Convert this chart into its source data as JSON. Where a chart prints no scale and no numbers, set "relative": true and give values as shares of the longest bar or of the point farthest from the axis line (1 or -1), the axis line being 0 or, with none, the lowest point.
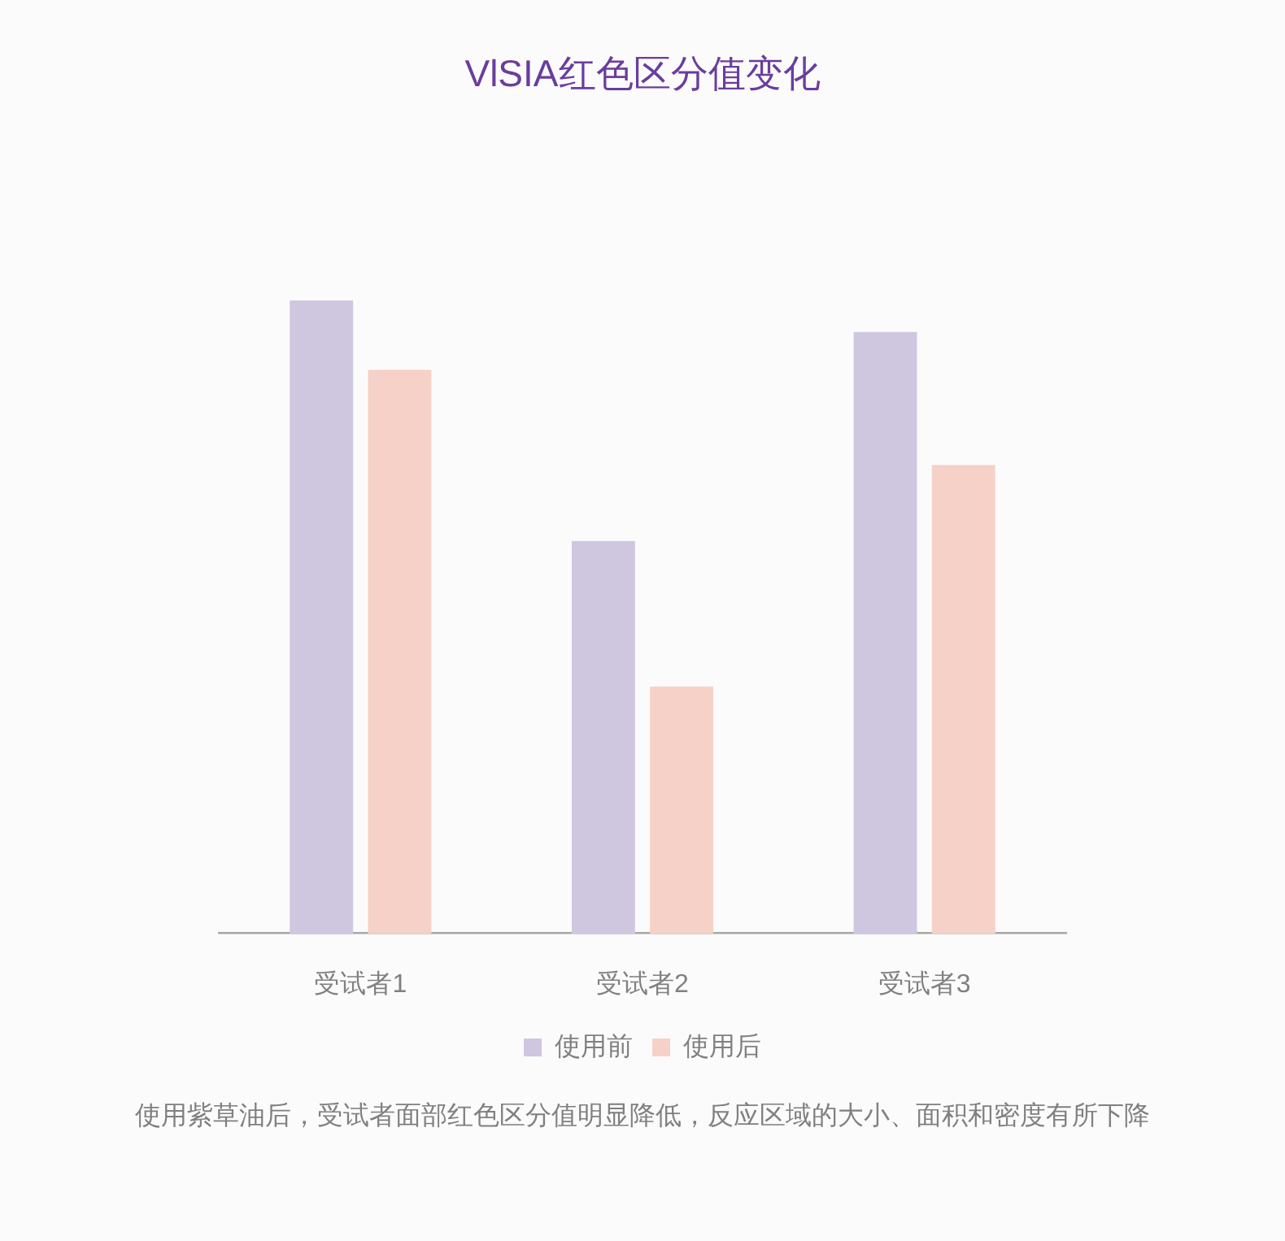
{
  "chart_data": {
    "type": "bar",
    "title": "VlSIA红色区分值变化",
    "categories": [
      "受试者1",
      "受试者2",
      "受试者3"
    ],
    "series": [
      {
        "name": "使用前",
        "color": "#cfc7e0",
        "values": [
          1,
          0.62,
          0.95
        ]
      },
      {
        "name": "使用后",
        "color": "#f5d1c7",
        "values": [
          0.89,
          0.39,
          0.74
        ]
      }
    ],
    "relative": true,
    "legend": "bottom",
    "annotations": [
      "使用紫草油后，受试者面部红色区分值明显降低，反应区域的大小、面积和密度有所下降"
    ]
  }
}
